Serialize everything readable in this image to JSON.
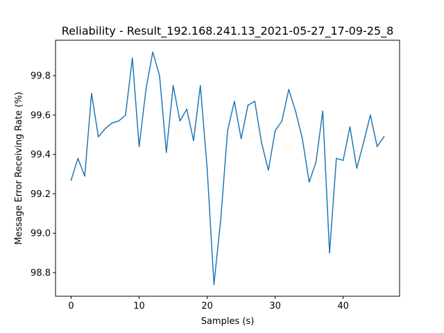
{
  "chart_data": {
    "type": "line",
    "title": "Reliability - Result_192.168.241.13_2021-05-27_17-09-25_8",
    "xlabel": "Samples (s)",
    "ylabel": "Message Error Receiving Rate (%)",
    "xlim": [
      -2.3,
      48.3
    ],
    "ylim": [
      98.68,
      99.98
    ],
    "xticks": [
      0,
      10,
      20,
      30,
      40
    ],
    "yticks": [
      98.8,
      99.0,
      99.2,
      99.4,
      99.6,
      99.8
    ],
    "ytick_labels": [
      "98.8",
      "99.0",
      "99.2",
      "99.4",
      "99.6",
      "99.8"
    ],
    "grid": false,
    "series": [
      {
        "color": "#1f77b4",
        "x": [
          0,
          1,
          2,
          3,
          4,
          5,
          6,
          7,
          8,
          9,
          10,
          11,
          12,
          13,
          14,
          15,
          16,
          17,
          18,
          19,
          20,
          21,
          22,
          23,
          24,
          25,
          26,
          27,
          28,
          29,
          30,
          31,
          32,
          33,
          34,
          35,
          36,
          37,
          38,
          39,
          40,
          41,
          42,
          43,
          44,
          45,
          46
        ],
        "values": [
          99.27,
          99.38,
          99.29,
          99.71,
          99.49,
          99.53,
          99.56,
          99.57,
          99.6,
          99.89,
          99.44,
          99.73,
          99.92,
          99.8,
          99.41,
          99.75,
          99.57,
          99.63,
          99.47,
          99.75,
          99.33,
          98.74,
          99.07,
          99.52,
          99.67,
          99.48,
          99.65,
          99.67,
          99.46,
          99.32,
          99.52,
          99.57,
          99.73,
          99.62,
          99.48,
          99.26,
          99.36,
          99.62,
          98.9,
          99.38,
          99.37,
          99.54,
          99.33,
          99.46,
          99.6,
          99.44,
          99.49
        ]
      }
    ]
  }
}
